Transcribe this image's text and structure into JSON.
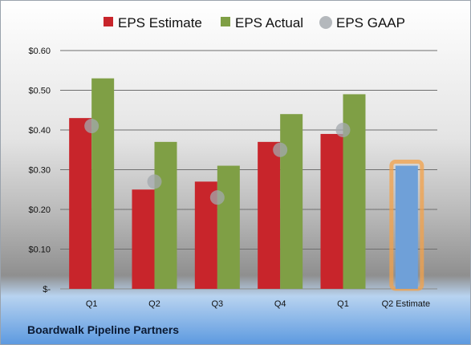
{
  "company": "Boardwalk Pipeline Partners",
  "colors": {
    "estimate": "#c8252b",
    "actual": "#7f9f45",
    "gaap": "#a3a8ad",
    "forecast": "#6fa0d8",
    "forecast_glow": "#f3a24a"
  },
  "chart_data": {
    "type": "bar",
    "categories": [
      "Q1",
      "Q2",
      "Q3",
      "Q4",
      "Q1",
      "Q2 Estimate"
    ],
    "series": [
      {
        "name": "EPS Estimate",
        "values": [
          0.43,
          0.25,
          0.27,
          0.37,
          0.39,
          null
        ]
      },
      {
        "name": "EPS Actual",
        "values": [
          0.53,
          0.37,
          0.31,
          0.44,
          0.49,
          0.31
        ]
      },
      {
        "name": "EPS GAAP",
        "values": [
          0.41,
          0.27,
          0.23,
          0.35,
          0.4,
          null
        ]
      }
    ],
    "highlight": {
      "category_index": 5,
      "series": "EPS Actual",
      "note": "estimate bar"
    },
    "yticks": [
      "$-",
      "$0.10",
      "$0.20",
      "$0.30",
      "$0.40",
      "$0.50",
      "$0.60"
    ],
    "ylim": [
      0,
      0.6
    ],
    "grid": true,
    "legend_position": "top",
    "title": "",
    "xlabel": "",
    "ylabel": ""
  }
}
